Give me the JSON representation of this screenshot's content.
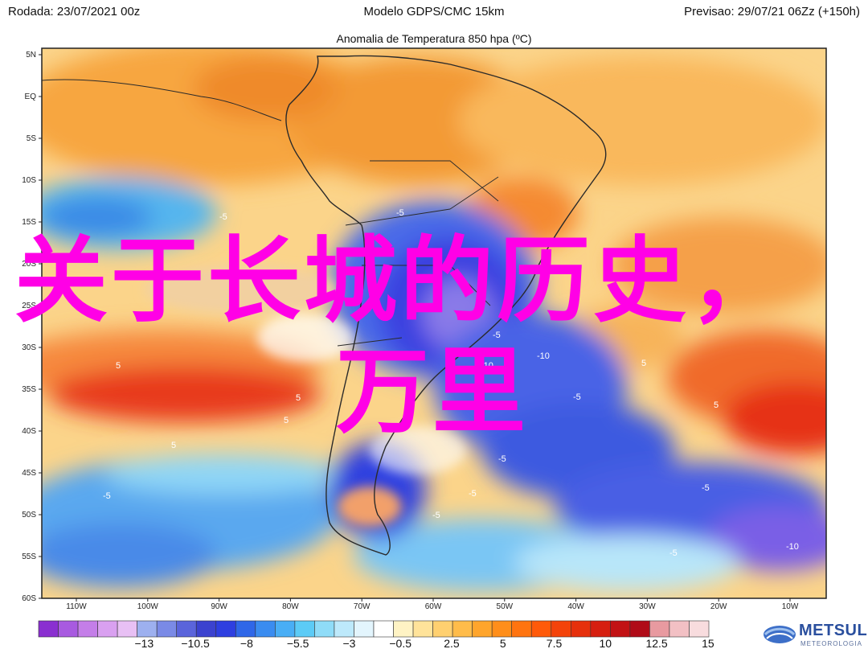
{
  "header": {
    "run": "Rodada: 23/07/2021 00z",
    "model": "Modelo GDPS/CMC 15km",
    "forecast": "Previsao: 29/07/21 06Zz (+150h)",
    "subtitle": "Anomalia de Temperatura 850 hpa (ºC)"
  },
  "overlay_text": {
    "line1": "关于长城的历史，",
    "line2": "万里"
  },
  "lat_labels": [
    "5N",
    "EQ",
    "5S",
    "10S",
    "15S",
    "20S",
    "25S",
    "30S",
    "35S",
    "40S",
    "45S",
    "50S",
    "55S",
    "60S"
  ],
  "lon_labels": [
    "110W",
    "100W",
    "90W",
    "80W",
    "70W",
    "60W",
    "50W",
    "40W",
    "30W",
    "20W",
    "10W"
  ],
  "contour_labels": [
    "-5",
    "-5",
    "-5",
    "-5",
    "-10",
    "-10",
    "-5",
    "-5",
    "-5",
    "-5",
    "-5",
    "-5",
    "-10",
    "-10",
    "5",
    "5",
    "5",
    "5",
    "5",
    "5"
  ],
  "colorbar": {
    "ticks": [
      "−13",
      "−10.5",
      "−8",
      "−5.5",
      "−3",
      "−0.5",
      "2.5",
      "5",
      "7.5",
      "10",
      "12.5",
      "15"
    ],
    "colors": [
      "#8a2fd0",
      "#a85ae0",
      "#c47ee8",
      "#d9a0f0",
      "#e8c0f4",
      "#9db0ef",
      "#7a8ae6",
      "#5a64db",
      "#3b42cf",
      "#2e3fe0",
      "#2f67e8",
      "#3a8cf0",
      "#49aef5",
      "#5ccbf6",
      "#8fdcf8",
      "#bde9fb",
      "#e3f5fd",
      "#ffffff",
      "#fff3c4",
      "#ffe39a",
      "#ffd070",
      "#ffbc4a",
      "#ffa52c",
      "#ff8e1a",
      "#ff7410",
      "#ff5a0a",
      "#f4430a",
      "#e6300c",
      "#d61f10",
      "#c21214",
      "#b00b18",
      "#e89aa0",
      "#f2c0c4",
      "#f8dcde"
    ]
  },
  "brand": {
    "name": "METSUL",
    "tagline": "METEOROLOGIA"
  },
  "colors": {
    "overlay": "#ff00e6",
    "warm": "#f7a640",
    "cold": "#3a55e6",
    "frame": "#222222"
  },
  "icons": [
    "globe-logo-icon"
  ]
}
